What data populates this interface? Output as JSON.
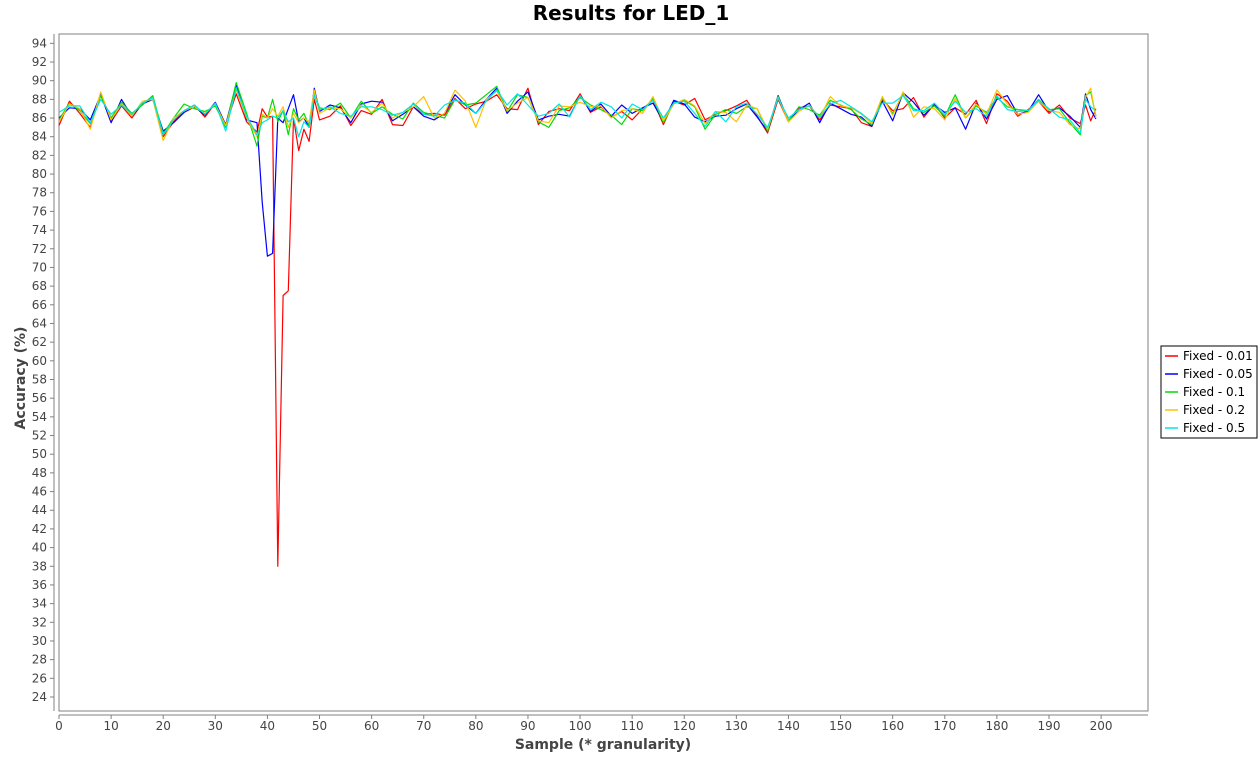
{
  "chart_data": {
    "type": "line",
    "title": "Results for LED_1",
    "xlabel": "Sample (* granularity)",
    "ylabel": "Accuracy (%)",
    "xlim": [
      0,
      209
    ],
    "ylim": [
      22.5,
      95
    ],
    "xticks": [
      0,
      10,
      20,
      30,
      40,
      50,
      60,
      70,
      80,
      90,
      100,
      110,
      120,
      130,
      140,
      150,
      160,
      170,
      180,
      190,
      200
    ],
    "yticks": [
      24,
      26,
      28,
      30,
      32,
      34,
      36,
      38,
      40,
      42,
      44,
      46,
      48,
      50,
      52,
      54,
      56,
      58,
      60,
      62,
      64,
      66,
      68,
      70,
      72,
      74,
      76,
      78,
      80,
      82,
      84,
      86,
      88,
      90,
      92,
      94
    ],
    "grid": false,
    "legend": "right",
    "x": [
      0,
      2,
      4,
      6,
      8,
      10,
      12,
      14,
      16,
      18,
      20,
      22,
      24,
      26,
      28,
      30,
      32,
      34,
      36,
      38,
      39,
      40,
      41,
      42,
      43,
      44,
      45,
      46,
      47,
      48,
      49,
      50,
      52,
      54,
      56,
      58,
      60,
      62,
      64,
      66,
      68,
      70,
      72,
      74,
      76,
      78,
      80,
      82,
      84,
      86,
      88,
      90,
      92,
      94,
      96,
      98,
      100,
      102,
      104,
      106,
      108,
      110,
      112,
      114,
      116,
      118,
      120,
      122,
      124,
      126,
      128,
      130,
      132,
      134,
      136,
      138,
      140,
      142,
      144,
      146,
      148,
      150,
      152,
      154,
      156,
      158,
      160,
      162,
      164,
      166,
      168,
      170,
      172,
      174,
      176,
      178,
      180,
      182,
      184,
      186,
      188,
      190,
      192,
      194,
      196,
      197,
      198,
      199
    ],
    "series": [
      {
        "name": "Fixed - 0.01",
        "color": "#ff0000",
        "values": [
          85.2,
          87.8,
          86.5,
          85.0,
          88.6,
          85.6,
          87.3,
          86.0,
          87.6,
          88.2,
          84.0,
          85.6,
          86.8,
          87.4,
          86.1,
          87.6,
          85.2,
          88.6,
          85.6,
          84.5,
          87.0,
          86.1,
          86.2,
          38.0,
          67.0,
          67.5,
          86.0,
          82.5,
          84.8,
          83.5,
          88.0,
          85.8,
          86.2,
          87.3,
          85.2,
          86.8,
          86.4,
          88.0,
          85.3,
          85.2,
          87.2,
          86.4,
          86.5,
          86.3,
          88.1,
          87.0,
          87.5,
          87.8,
          88.5,
          87.0,
          86.9,
          89.2,
          85.3,
          86.7,
          87.0,
          86.8,
          88.6,
          86.6,
          87.2,
          86.1,
          86.7,
          85.8,
          87.0,
          87.9,
          85.3,
          87.8,
          87.4,
          88.1,
          85.8,
          86.4,
          86.8,
          87.3,
          87.9,
          86.2,
          84.4,
          88.0,
          85.6,
          87.1,
          87.3,
          85.8,
          87.4,
          87.2,
          87.0,
          85.5,
          85.1,
          88.0,
          86.8,
          87.0,
          88.2,
          86.1,
          87.5,
          86.0,
          87.1,
          86.4,
          87.9,
          85.4,
          88.6,
          87.8,
          86.2,
          86.9,
          87.8,
          86.5,
          87.4,
          86.0,
          85.4,
          87.4,
          85.7,
          87.0
        ]
      },
      {
        "name": "Fixed - 0.05",
        "color": "#0000ff",
        "values": [
          86.0,
          87.1,
          87.0,
          85.8,
          88.5,
          85.5,
          88.0,
          86.2,
          87.5,
          88.0,
          84.6,
          85.5,
          86.6,
          87.2,
          86.3,
          87.7,
          85.3,
          89.6,
          85.8,
          85.5,
          77.0,
          71.2,
          71.5,
          86.0,
          85.5,
          87.0,
          88.5,
          85.6,
          86.0,
          85.0,
          89.2,
          86.7,
          87.4,
          87.1,
          85.5,
          87.5,
          87.8,
          87.7,
          85.7,
          86.4,
          87.2,
          86.2,
          85.8,
          86.5,
          88.5,
          87.4,
          86.5,
          88.0,
          89.2,
          86.5,
          87.8,
          88.8,
          85.8,
          86.2,
          86.4,
          86.2,
          88.4,
          86.7,
          87.5,
          86.2,
          87.4,
          86.5,
          87.1,
          87.6,
          85.6,
          87.9,
          87.5,
          86.1,
          85.6,
          86.2,
          86.3,
          87.0,
          87.5,
          86.1,
          84.6,
          88.4,
          85.7,
          86.9,
          87.6,
          85.5,
          87.6,
          87.0,
          86.4,
          86.1,
          85.1,
          87.8,
          85.7,
          88.7,
          87.7,
          86.3,
          87.4,
          86.6,
          87.1,
          84.8,
          87.6,
          85.9,
          88.0,
          88.4,
          86.4,
          86.7,
          88.5,
          86.7,
          87.1,
          86.2,
          85.0,
          88.6,
          86.9,
          85.9
        ]
      },
      {
        "name": "Fixed - 0.1",
        "color": "#00dd00",
        "values": [
          85.8,
          87.6,
          86.8,
          85.4,
          88.4,
          86.0,
          87.7,
          86.5,
          87.4,
          88.4,
          84.3,
          86.0,
          87.5,
          87.0,
          86.7,
          87.3,
          85.0,
          89.8,
          86.5,
          83.0,
          86.2,
          86.0,
          88.0,
          85.6,
          86.8,
          84.2,
          87.0,
          85.8,
          86.5,
          85.2,
          88.6,
          87.1,
          86.9,
          87.6,
          86.0,
          87.8,
          86.5,
          87.2,
          86.4,
          85.9,
          87.6,
          86.6,
          86.3,
          86.0,
          88.0,
          87.4,
          87.6,
          88.5,
          89.4,
          86.7,
          88.5,
          88.2,
          85.6,
          85.0,
          86.8,
          87.1,
          88.2,
          87.4,
          86.9,
          86.3,
          85.3,
          87.0,
          86.8,
          88.1,
          85.5,
          87.6,
          87.9,
          87.2,
          84.8,
          86.4,
          86.9,
          86.5,
          87.2,
          87.0,
          84.6,
          88.3,
          85.7,
          87.2,
          86.9,
          86.3,
          87.9,
          87.4,
          86.9,
          85.9,
          85.3,
          88.1,
          86.5,
          88.6,
          87.0,
          86.6,
          87.3,
          86.2,
          88.5,
          86.0,
          87.3,
          86.6,
          88.2,
          87.2,
          86.9,
          86.8,
          88.0,
          86.9,
          87.0,
          85.5,
          84.2,
          88.4,
          88.8,
          86.2
        ]
      },
      {
        "name": "Fixed - 0.2",
        "color": "#ffc000",
        "values": [
          85.6,
          87.5,
          87.0,
          84.8,
          88.8,
          85.8,
          87.5,
          86.2,
          87.8,
          88.0,
          83.6,
          86.0,
          86.8,
          87.2,
          86.5,
          87.5,
          85.2,
          89.0,
          86.0,
          84.0,
          86.4,
          86.0,
          87.0,
          86.2,
          87.2,
          85.0,
          86.5,
          85.5,
          86.0,
          85.6,
          89.0,
          86.5,
          87.1,
          87.0,
          86.0,
          87.4,
          86.6,
          87.6,
          86.0,
          86.6,
          87.2,
          88.3,
          86.0,
          86.5,
          89.0,
          87.8,
          85.0,
          88.0,
          88.9,
          86.8,
          87.6,
          88.2,
          85.7,
          85.5,
          87.3,
          87.2,
          87.7,
          87.2,
          87.3,
          86.0,
          86.8,
          87.0,
          86.5,
          88.3,
          85.7,
          87.5,
          88.0,
          87.3,
          85.4,
          86.7,
          86.6,
          85.6,
          87.4,
          87.0,
          84.8,
          88.2,
          85.6,
          86.7,
          87.4,
          86.0,
          88.3,
          87.3,
          87.1,
          86.4,
          85.4,
          88.3,
          86.3,
          88.8,
          86.1,
          87.2,
          87.0,
          85.8,
          88.1,
          86.0,
          87.5,
          86.4,
          89.0,
          87.5,
          86.4,
          86.6,
          87.8,
          86.8,
          86.6,
          85.3,
          84.8,
          88.2,
          89.2,
          86.0
        ]
      },
      {
        "name": "Fixed - 0.5",
        "color": "#00e5e5",
        "values": [
          86.6,
          87.3,
          87.3,
          85.5,
          88.0,
          86.4,
          87.4,
          86.4,
          87.6,
          88.2,
          84.2,
          85.8,
          86.8,
          87.4,
          86.4,
          87.6,
          84.6,
          89.2,
          86.2,
          84.2,
          85.5,
          85.8,
          86.2,
          86.0,
          86.8,
          85.6,
          86.0,
          84.0,
          85.6,
          85.0,
          88.4,
          86.9,
          87.2,
          86.5,
          86.2,
          87.2,
          87.2,
          86.9,
          86.3,
          86.6,
          87.5,
          86.4,
          86.2,
          87.4,
          87.9,
          87.6,
          86.5,
          87.8,
          89.0,
          87.4,
          88.6,
          87.4,
          86.2,
          86.5,
          87.5,
          86.1,
          88.4,
          86.9,
          87.7,
          87.2,
          86.0,
          87.5,
          86.9,
          87.9,
          86.0,
          87.6,
          87.8,
          86.5,
          85.1,
          86.7,
          85.6,
          87.2,
          87.6,
          86.4,
          85.0,
          88.1,
          86.0,
          86.9,
          87.3,
          86.1,
          87.5,
          87.9,
          87.2,
          86.5,
          85.6,
          87.6,
          87.6,
          88.4,
          86.8,
          86.8,
          87.6,
          86.4,
          87.8,
          86.6,
          87.0,
          86.2,
          88.4,
          86.9,
          86.7,
          86.8,
          87.9,
          87.0,
          86.1,
          85.8,
          84.4,
          88.0,
          87.2,
          86.8
        ]
      }
    ]
  }
}
